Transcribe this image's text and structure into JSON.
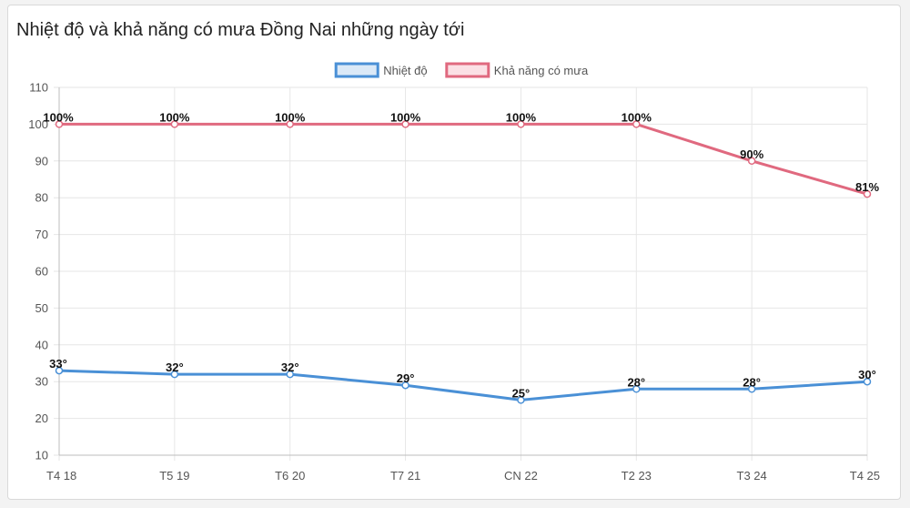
{
  "chart_data": {
    "type": "line",
    "title": "Nhiệt độ và khả năng có mưa Đồng Nai những ngày tới",
    "categories": [
      "T4 18",
      "T5 19",
      "T6 20",
      "T7 21",
      "CN 22",
      "T2 23",
      "T3 24",
      "T4 25"
    ],
    "series": [
      {
        "name": "Nhiệt độ",
        "values": [
          33,
          32,
          32,
          29,
          25,
          28,
          28,
          30
        ],
        "labels": [
          "33°",
          "32°",
          "32°",
          "29°",
          "25°",
          "28°",
          "28°",
          "30°"
        ],
        "color": "#4a90d6",
        "fill": "#dbe9f7"
      },
      {
        "name": "Khả năng có mưa",
        "values": [
          100,
          100,
          100,
          100,
          100,
          100,
          90,
          81
        ],
        "labels": [
          "100%",
          "100%",
          "100%",
          "100%",
          "100%",
          "100%",
          "90%",
          "81%"
        ],
        "color": "#e0697f",
        "fill": "#fbe0e5"
      }
    ],
    "ylim": [
      10,
      110
    ],
    "yticks": [
      10,
      20,
      30,
      40,
      50,
      60,
      70,
      80,
      90,
      100,
      110
    ],
    "grid": true,
    "legend_position": "top-center"
  }
}
